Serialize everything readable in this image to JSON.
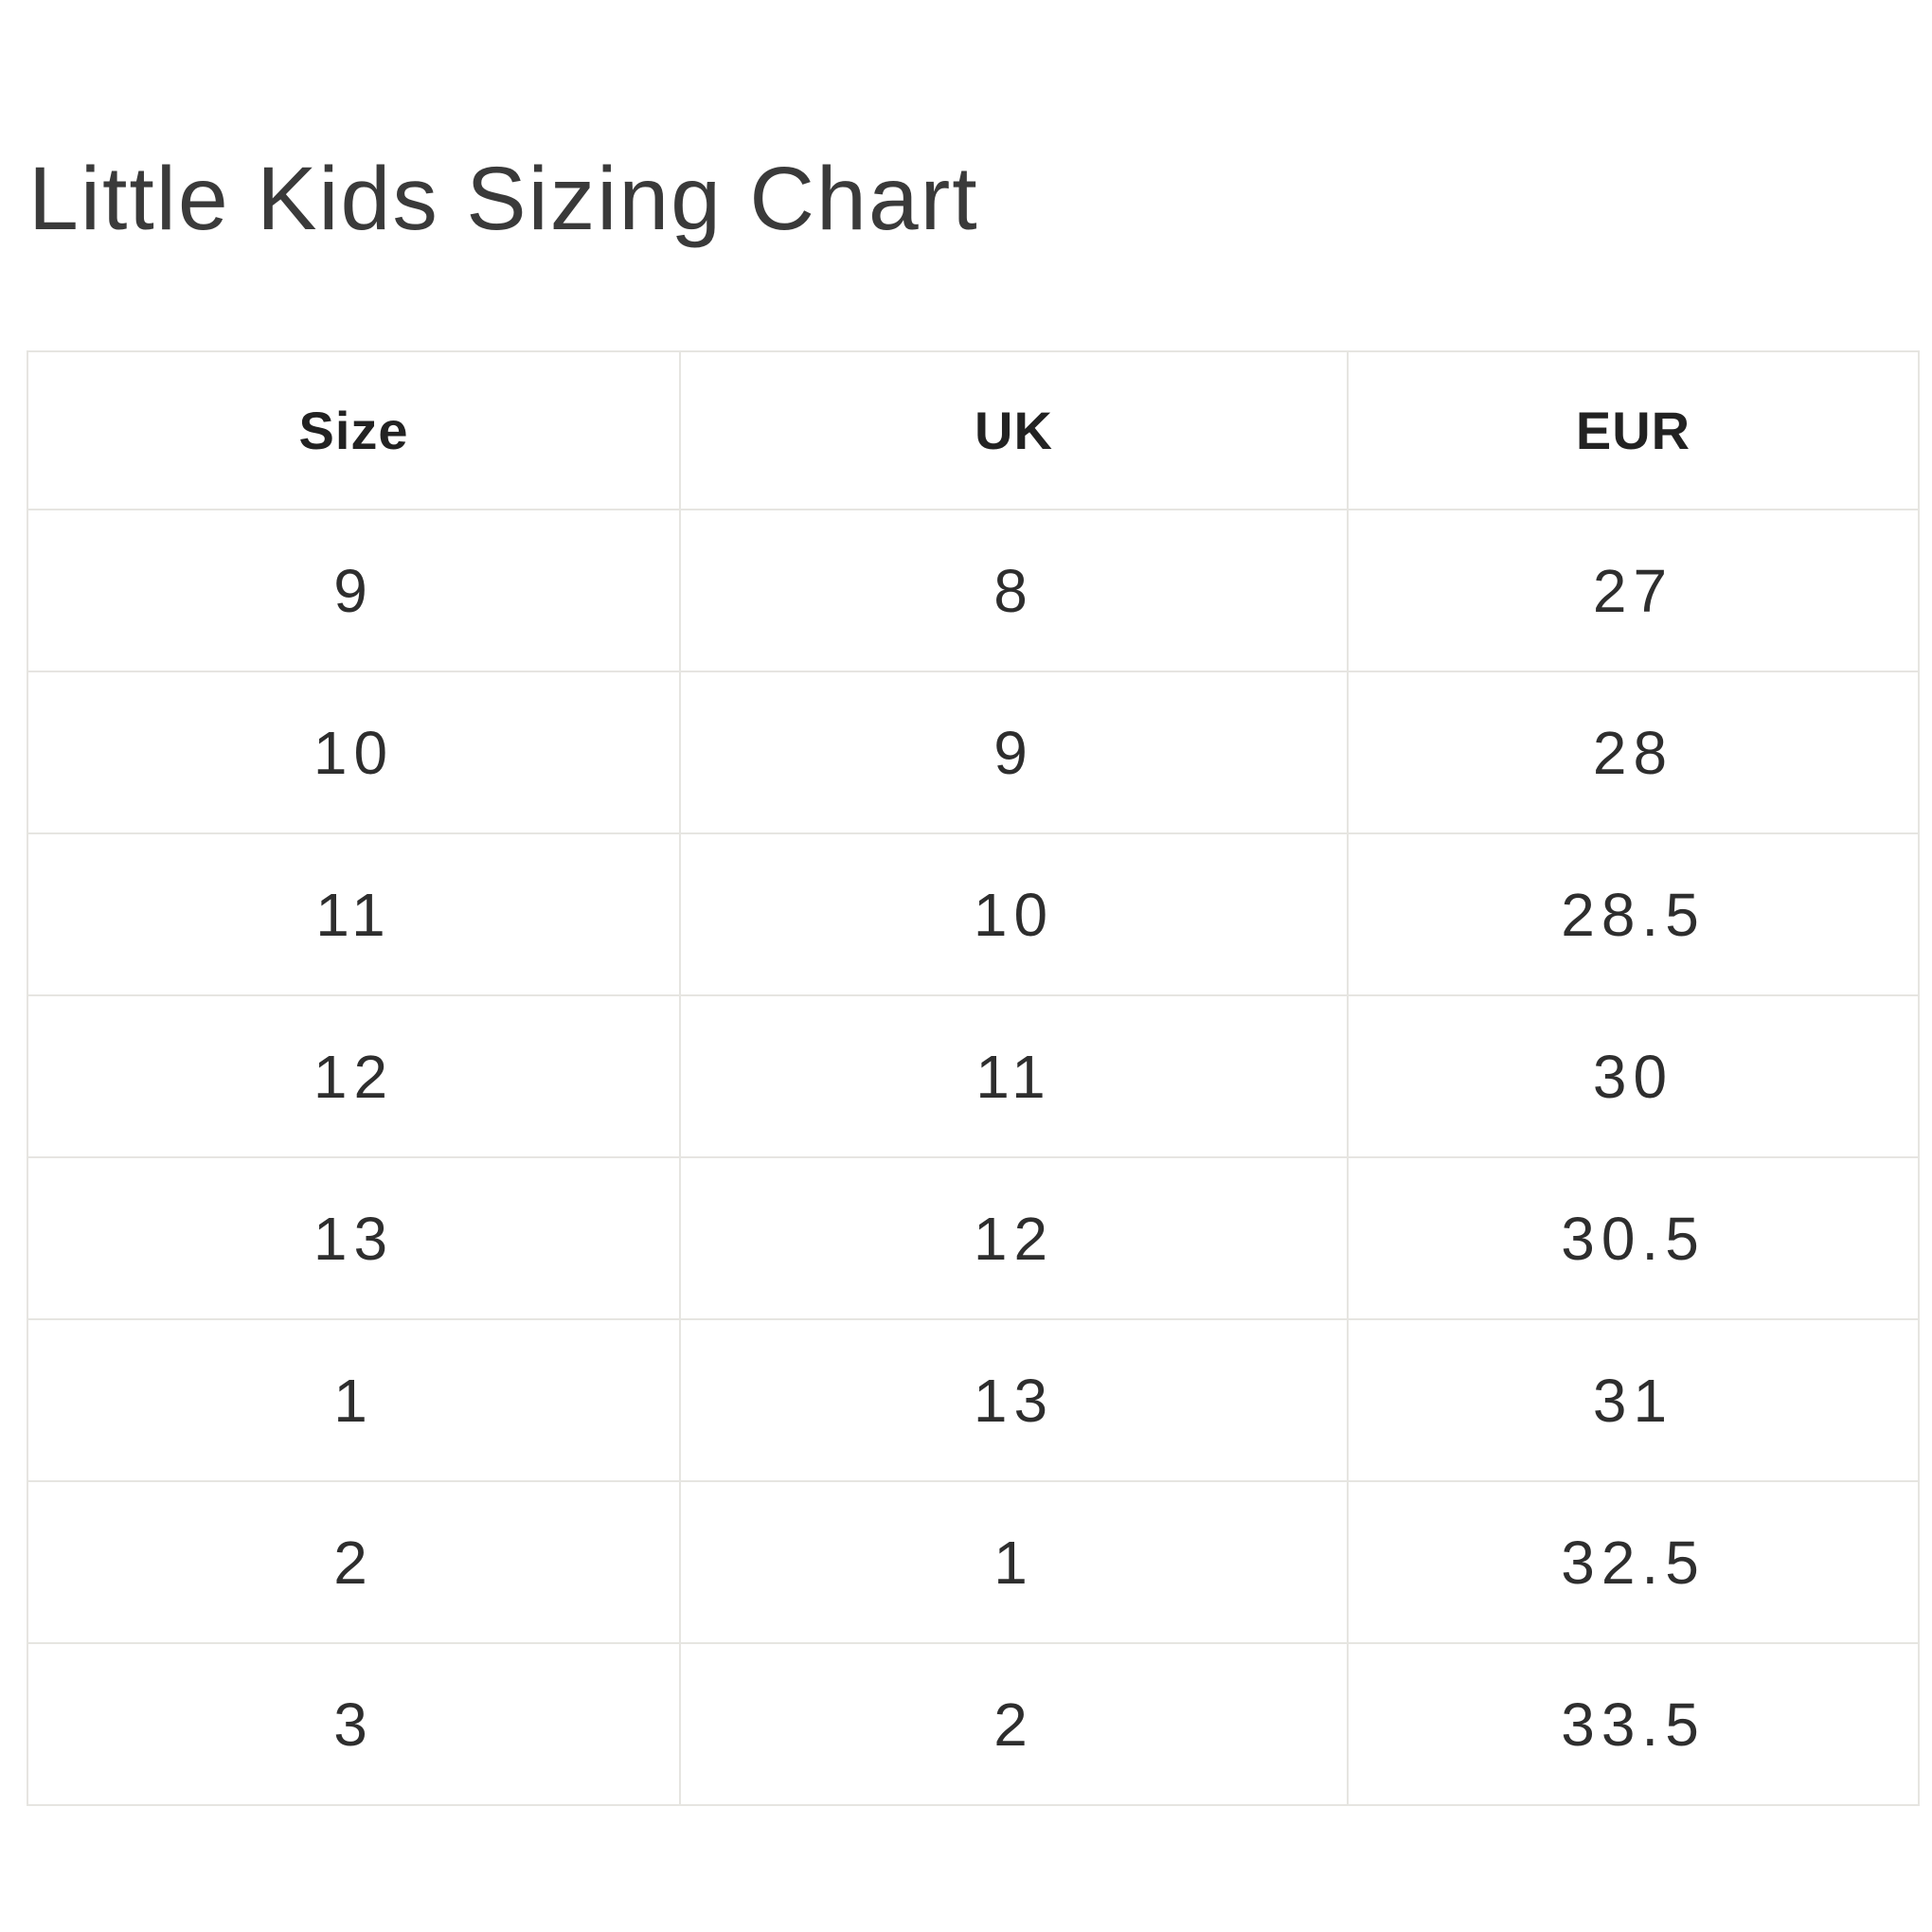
{
  "page": {
    "title": "Little Kids Sizing Chart"
  },
  "table": {
    "headers": [
      "Size",
      "UK",
      "EUR"
    ],
    "rows": [
      [
        "9",
        "8",
        "27"
      ],
      [
        "10",
        "9",
        "28"
      ],
      [
        "11",
        "10",
        "28.5"
      ],
      [
        "12",
        "11",
        "30"
      ],
      [
        "13",
        "12",
        "30.5"
      ],
      [
        "1",
        "13",
        "31"
      ],
      [
        "2",
        "1",
        "32.5"
      ],
      [
        "3",
        "2",
        "33.5"
      ]
    ]
  },
  "colors": {
    "background": "#ffffff",
    "border": "#e6e5e1",
    "title_text": "#3a3a3a",
    "heading_text": "#222222",
    "cell_text": "#2e2e2e"
  },
  "chart_data": {
    "type": "table",
    "title": "Little Kids Sizing Chart",
    "columns": [
      "Size",
      "UK",
      "EUR"
    ],
    "rows": [
      [
        9,
        8,
        27
      ],
      [
        10,
        9,
        28
      ],
      [
        11,
        10,
        28.5
      ],
      [
        12,
        11,
        30
      ],
      [
        13,
        12,
        30.5
      ],
      [
        1,
        13,
        31
      ],
      [
        2,
        1,
        32.5
      ],
      [
        3,
        2,
        33.5
      ]
    ]
  }
}
